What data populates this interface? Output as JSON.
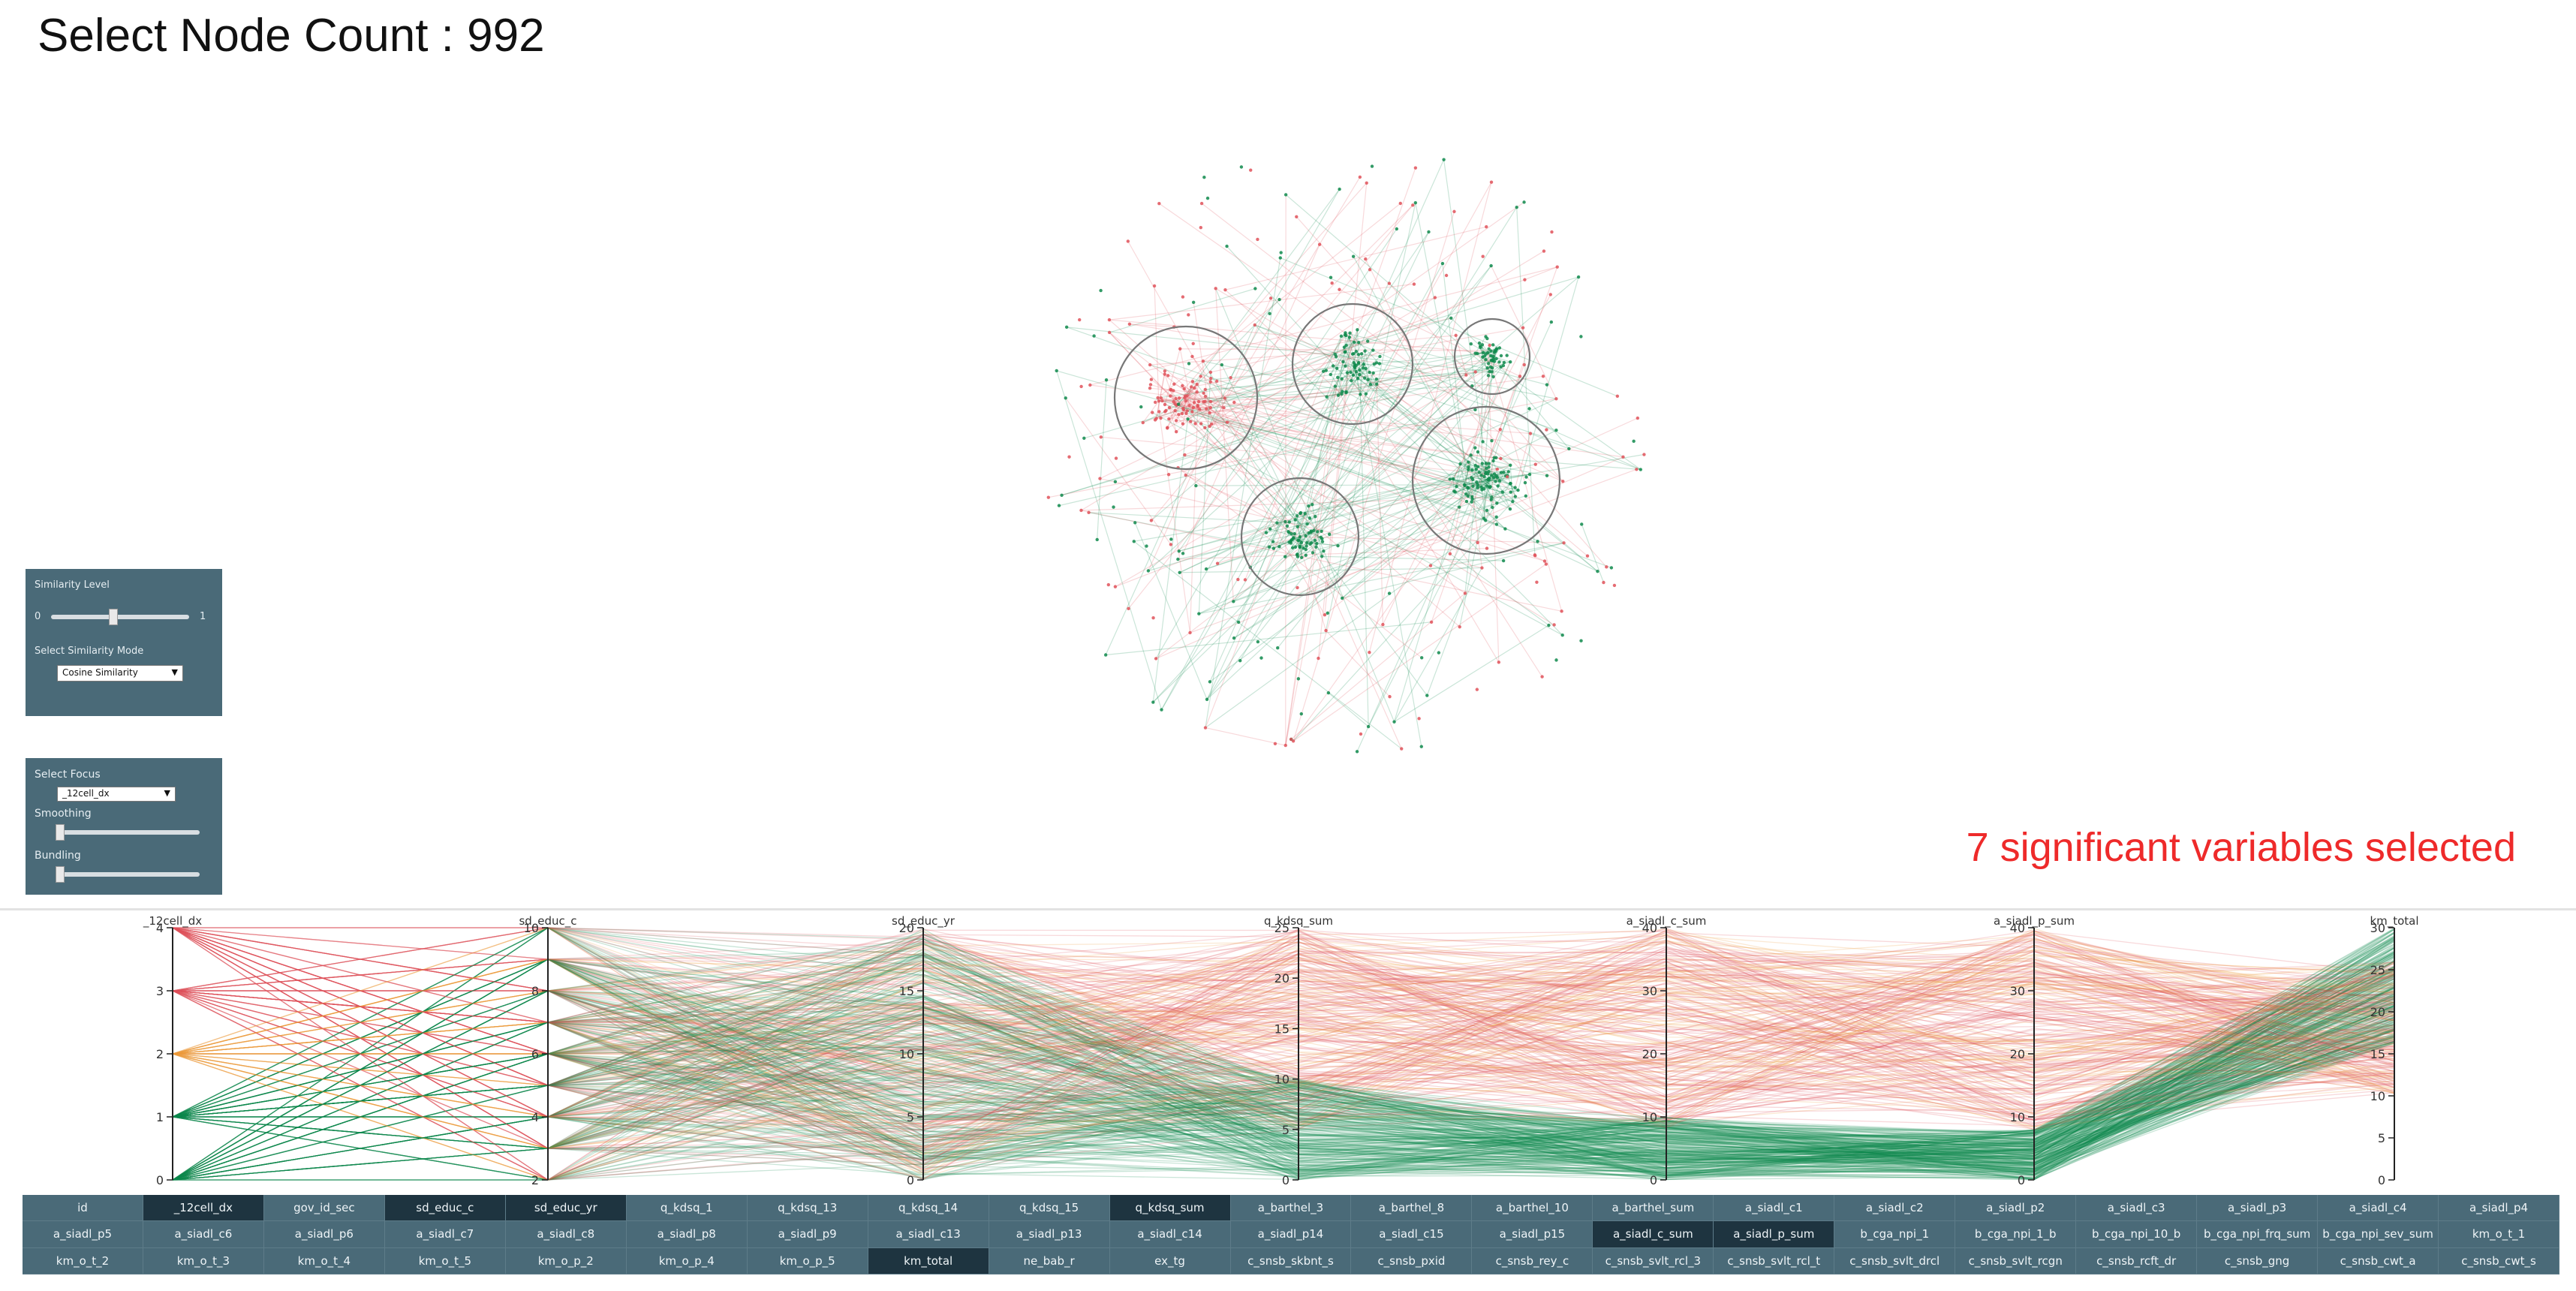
{
  "header": {
    "title": "Select Node Count : 992"
  },
  "colors": {
    "red_group": "#e0525a",
    "green_group": "#0f8a4c",
    "panel_bg": "#4a6a78",
    "selected_cell": "#1e3440",
    "significance_label": "#ee2a2a"
  },
  "similarity_panel": {
    "title": "Similarity Level",
    "slider_min": "0",
    "slider_max": "1",
    "slider_value": 0.45,
    "mode_label": "Select Similarity Mode",
    "mode_value": "Cosine Similarity"
  },
  "focus_panel": {
    "title": "Select Focus",
    "focus_value": "_12cell_dx",
    "smoothing_label": "Smoothing",
    "smoothing_value": 0.02,
    "bundling_label": "Bundling",
    "bundling_value": 0.02
  },
  "significance": {
    "label": "7 significant variables selected"
  },
  "network": {
    "clusters": [
      {
        "group": "red",
        "size": "large"
      },
      {
        "group": "green",
        "size": "medium"
      },
      {
        "group": "green",
        "size": "medium"
      },
      {
        "group": "green",
        "size": "small"
      },
      {
        "group": "green",
        "size": "large"
      }
    ]
  },
  "parallel_coords": {
    "axes": [
      {
        "name": "_12cell_dx",
        "ticks": [
          "0",
          "1",
          "2",
          "3",
          "4"
        ]
      },
      {
        "name": "sd_educ_c",
        "ticks": [
          "2",
          "4",
          "6",
          "8",
          "10"
        ]
      },
      {
        "name": "sd_educ_yr",
        "ticks": [
          "0",
          "5",
          "10",
          "15",
          "20"
        ]
      },
      {
        "name": "q_kdsq_sum",
        "ticks": [
          "0",
          "5",
          "10",
          "15",
          "20",
          "25"
        ]
      },
      {
        "name": "a_siadl_c_sum",
        "ticks": [
          "0",
          "10",
          "20",
          "30",
          "40"
        ]
      },
      {
        "name": "a_siadl_p_sum",
        "ticks": [
          "0",
          "10",
          "20",
          "30",
          "40"
        ]
      },
      {
        "name": "km_total",
        "ticks": [
          "0",
          "5",
          "10",
          "15",
          "20",
          "25",
          "30"
        ]
      }
    ]
  },
  "variables": [
    "id",
    "_12cell_dx",
    "gov_id_sec",
    "sd_educ_c",
    "sd_educ_yr",
    "q_kdsq_1",
    "q_kdsq_13",
    "q_kdsq_14",
    "q_kdsq_15",
    "q_kdsq_sum",
    "a_barthel_3",
    "a_barthel_8",
    "a_barthel_10",
    "a_barthel_sum",
    "a_siadl_c1",
    "a_siadl_c2",
    "a_siadl_p2",
    "a_siadl_c3",
    "a_siadl_p3",
    "a_siadl_c4",
    "a_siadl_p4",
    "a_siadl_p5",
    "a_siadl_c6",
    "a_siadl_p6",
    "a_siadl_c7",
    "a_siadl_c8",
    "a_siadl_p8",
    "a_siadl_p9",
    "a_siadl_c13",
    "a_siadl_p13",
    "a_siadl_c14",
    "a_siadl_p14",
    "a_siadl_c15",
    "a_siadl_p15",
    "a_siadl_c_sum",
    "a_siadl_p_sum",
    "b_cga_npi_1",
    "b_cga_npi_1_b",
    "b_cga_npi_10_b",
    "b_cga_npi_frq_sum",
    "b_cga_npi_sev_sum",
    "km_o_t_1",
    "km_o_t_2",
    "km_o_t_3",
    "km_o_t_4",
    "km_o_t_5",
    "km_o_p_2",
    "km_o_p_4",
    "km_o_p_5",
    "km_total",
    "ne_bab_r",
    "ex_tg",
    "c_snsb_skbnt_s",
    "c_snsb_pxid",
    "c_snsb_rey_c",
    "c_snsb_svlt_rcl_3",
    "c_snsb_svlt_rcl_t",
    "c_snsb_svlt_drcl",
    "c_snsb_svlt_rcgn",
    "c_snsb_rcft_dr",
    "c_snsb_gng",
    "c_snsb_cwt_a",
    "c_snsb_cwt_s"
  ],
  "selected_variables": [
    "_12cell_dx",
    "sd_educ_c",
    "sd_educ_yr",
    "q_kdsq_sum",
    "a_siadl_c_sum",
    "a_siadl_p_sum",
    "km_total"
  ]
}
